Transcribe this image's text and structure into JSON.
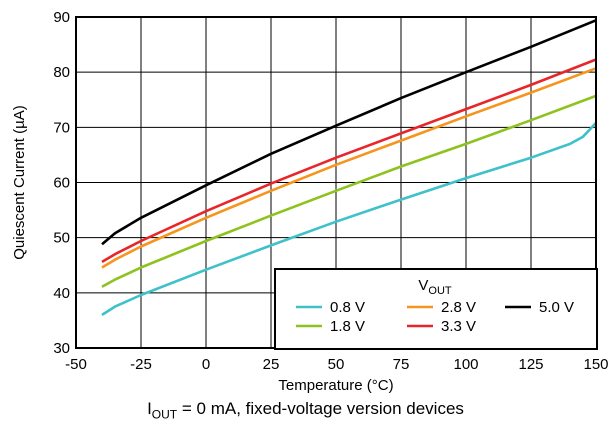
{
  "chart_data": {
    "type": "line",
    "xlabel": "Temperature (°C)",
    "ylabel": "Quiescent Current (µA)",
    "xlim": [
      -50,
      150
    ],
    "ylim": [
      30,
      90
    ],
    "xticks": [
      -50,
      -25,
      0,
      25,
      50,
      75,
      100,
      125,
      150
    ],
    "yticks": [
      30,
      40,
      50,
      60,
      70,
      80,
      90
    ],
    "grid": true,
    "legend": {
      "title_main": "V",
      "title_sub": "OUT",
      "placement": "bottom-right"
    },
    "series": [
      {
        "name": "0.8 V",
        "color": "#3fc1c9",
        "points": [
          [
            -40,
            36.0
          ],
          [
            -35,
            37.5
          ],
          [
            -25,
            39.6
          ],
          [
            0,
            44.2
          ],
          [
            25,
            48.6
          ],
          [
            50,
            52.9
          ],
          [
            75,
            56.9
          ],
          [
            100,
            60.8
          ],
          [
            125,
            64.5
          ],
          [
            140,
            67.0
          ],
          [
            145,
            68.3
          ],
          [
            150,
            70.8
          ]
        ]
      },
      {
        "name": "1.8 V",
        "color": "#8dc21f",
        "points": [
          [
            -40,
            41.1
          ],
          [
            -35,
            42.4
          ],
          [
            -25,
            44.6
          ],
          [
            0,
            49.4
          ],
          [
            25,
            54.0
          ],
          [
            50,
            58.5
          ],
          [
            75,
            62.9
          ],
          [
            100,
            67.0
          ],
          [
            125,
            71.3
          ],
          [
            150,
            75.7
          ]
        ]
      },
      {
        "name": "2.8 V",
        "color": "#f7941d",
        "points": [
          [
            -40,
            44.6
          ],
          [
            -35,
            46.0
          ],
          [
            -25,
            48.4
          ],
          [
            0,
            53.6
          ],
          [
            25,
            58.5
          ],
          [
            50,
            63.2
          ],
          [
            75,
            67.6
          ],
          [
            100,
            72.0
          ],
          [
            125,
            76.3
          ],
          [
            150,
            80.7
          ]
        ]
      },
      {
        "name": "3.3 V",
        "color": "#e8262a",
        "points": [
          [
            -40,
            45.6
          ],
          [
            -35,
            47.0
          ],
          [
            -25,
            49.4
          ],
          [
            0,
            54.8
          ],
          [
            25,
            59.8
          ],
          [
            50,
            64.5
          ],
          [
            75,
            68.9
          ],
          [
            100,
            73.3
          ],
          [
            125,
            77.7
          ],
          [
            150,
            82.3
          ]
        ]
      },
      {
        "name": "5.0 V",
        "color": "#000000",
        "points": [
          [
            -40,
            48.8
          ],
          [
            -35,
            50.8
          ],
          [
            -25,
            53.6
          ],
          [
            0,
            59.5
          ],
          [
            25,
            65.2
          ],
          [
            50,
            70.3
          ],
          [
            75,
            75.3
          ],
          [
            100,
            80.0
          ],
          [
            125,
            84.6
          ],
          [
            150,
            89.4
          ]
        ]
      }
    ],
    "legend_order": [
      [
        "0.8 V",
        "2.8 V",
        "5.0 V"
      ],
      [
        "1.8 V",
        "3.3 V"
      ]
    ]
  },
  "caption": {
    "main": "I",
    "sub": "OUT",
    "rest": " = 0 mA, fixed-voltage version devices"
  }
}
